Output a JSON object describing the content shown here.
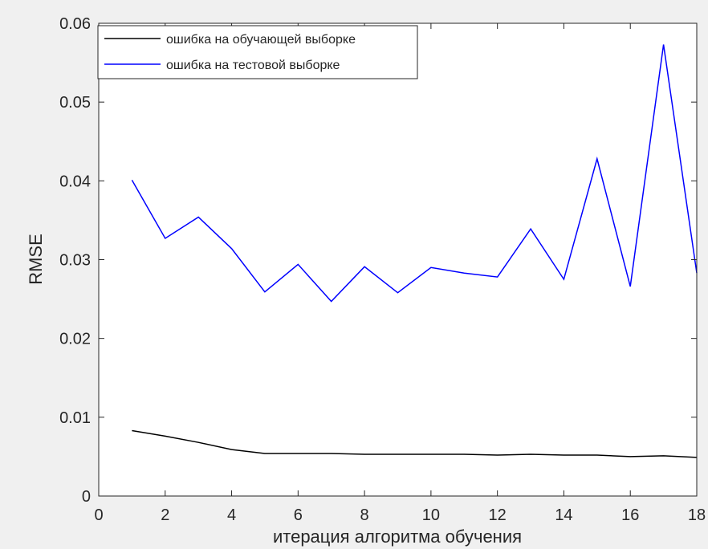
{
  "chart_data": {
    "type": "line",
    "xlabel": "итерация алгоритма обучения",
    "ylabel": "RMSE",
    "xlim": [
      0,
      18
    ],
    "ylim": [
      0,
      0.06
    ],
    "xticks": [
      0,
      2,
      4,
      6,
      8,
      10,
      12,
      14,
      16,
      18
    ],
    "yticks": [
      0,
      0.01,
      0.02,
      0.03,
      0.04,
      0.05,
      0.06
    ],
    "xtick_labels": [
      "0",
      "2",
      "4",
      "6",
      "8",
      "10",
      "12",
      "14",
      "16",
      "18"
    ],
    "ytick_labels": [
      "0",
      "0.01",
      "0.02",
      "0.03",
      "0.04",
      "0.05",
      "0.06"
    ],
    "grid": false,
    "legend_position": "top-left",
    "series": [
      {
        "name": "ошибка на обучающей выборке",
        "color": "#000000",
        "x": [
          1,
          2,
          3,
          4,
          5,
          6,
          7,
          8,
          9,
          10,
          11,
          12,
          13,
          14,
          15,
          16,
          17,
          18
        ],
        "y": [
          0.0083,
          0.0076,
          0.0068,
          0.0059,
          0.0054,
          0.0054,
          0.0054,
          0.0053,
          0.0053,
          0.0053,
          0.0053,
          0.0052,
          0.0053,
          0.0052,
          0.0052,
          0.005,
          0.0051,
          0.0049
        ]
      },
      {
        "name": "ошибка на тестовой выборке",
        "color": "#0000ff",
        "x": [
          1,
          2,
          3,
          4,
          5,
          6,
          7,
          8,
          9,
          10,
          11,
          12,
          13,
          14,
          15,
          16,
          17,
          18
        ],
        "y": [
          0.0401,
          0.0327,
          0.0354,
          0.0314,
          0.0259,
          0.0294,
          0.0247,
          0.0291,
          0.0258,
          0.029,
          0.0283,
          0.0278,
          0.0339,
          0.0275,
          0.0428,
          0.0266,
          0.0573,
          0.0283
        ]
      }
    ]
  }
}
